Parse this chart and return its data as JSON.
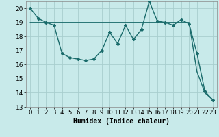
{
  "title": "",
  "xlabel": "Humidex (Indice chaleur)",
  "background_color": "#c8eaea",
  "grid_color": "#a8cece",
  "line_color": "#1a6b6b",
  "x_values": [
    0,
    1,
    2,
    3,
    4,
    5,
    6,
    7,
    8,
    9,
    10,
    11,
    12,
    13,
    14,
    15,
    16,
    17,
    18,
    19,
    20,
    21,
    22,
    23
  ],
  "line1_y": [
    20.0,
    19.3,
    19.0,
    18.8,
    16.8,
    16.5,
    16.4,
    16.3,
    16.4,
    17.0,
    18.3,
    17.5,
    18.8,
    17.8,
    18.5,
    20.5,
    19.1,
    19.0,
    18.8,
    19.2,
    18.9,
    16.8,
    14.1,
    13.5
  ],
  "line2_y": [
    19.0,
    19.0,
    19.0,
    19.0,
    19.0,
    19.0,
    19.0,
    19.0,
    19.0,
    19.0,
    19.0,
    19.0,
    19.0,
    19.0,
    19.0,
    19.0,
    19.0,
    19.0,
    19.0,
    19.0,
    19.0,
    15.5,
    14.0,
    13.5
  ],
  "ylim": [
    13,
    20.5
  ],
  "xlim": [
    -0.5,
    23.5
  ],
  "yticks": [
    13,
    14,
    15,
    16,
    17,
    18,
    19,
    20
  ],
  "xticks": [
    0,
    1,
    2,
    3,
    4,
    5,
    6,
    7,
    8,
    9,
    10,
    11,
    12,
    13,
    14,
    15,
    16,
    17,
    18,
    19,
    20,
    21,
    22,
    23
  ],
  "tick_fontsize": 6.5,
  "xlabel_fontsize": 7,
  "marker_size": 2.0,
  "linewidth": 1.0
}
